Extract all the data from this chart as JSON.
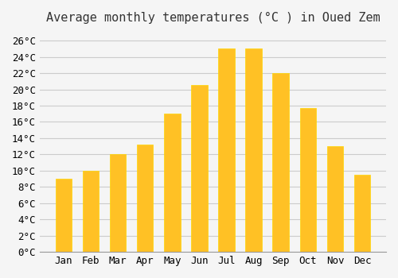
{
  "title": "Average monthly temperatures (°C ) in Oued Zem",
  "months": [
    "Jan",
    "Feb",
    "Mar",
    "Apr",
    "May",
    "Jun",
    "Jul",
    "Aug",
    "Sep",
    "Oct",
    "Nov",
    "Dec"
  ],
  "values": [
    9.0,
    10.0,
    12.0,
    13.2,
    17.0,
    20.5,
    25.0,
    25.0,
    22.0,
    17.7,
    13.0,
    9.5
  ],
  "bar_color": "#FFC125",
  "bar_edge_color": "#FFD700",
  "background_color": "#F5F5F5",
  "grid_color": "#CCCCCC",
  "ylim": [
    0,
    27
  ],
  "yticks": [
    0,
    2,
    4,
    6,
    8,
    10,
    12,
    14,
    16,
    18,
    20,
    22,
    24,
    26
  ],
  "title_fontsize": 11,
  "tick_fontsize": 9
}
